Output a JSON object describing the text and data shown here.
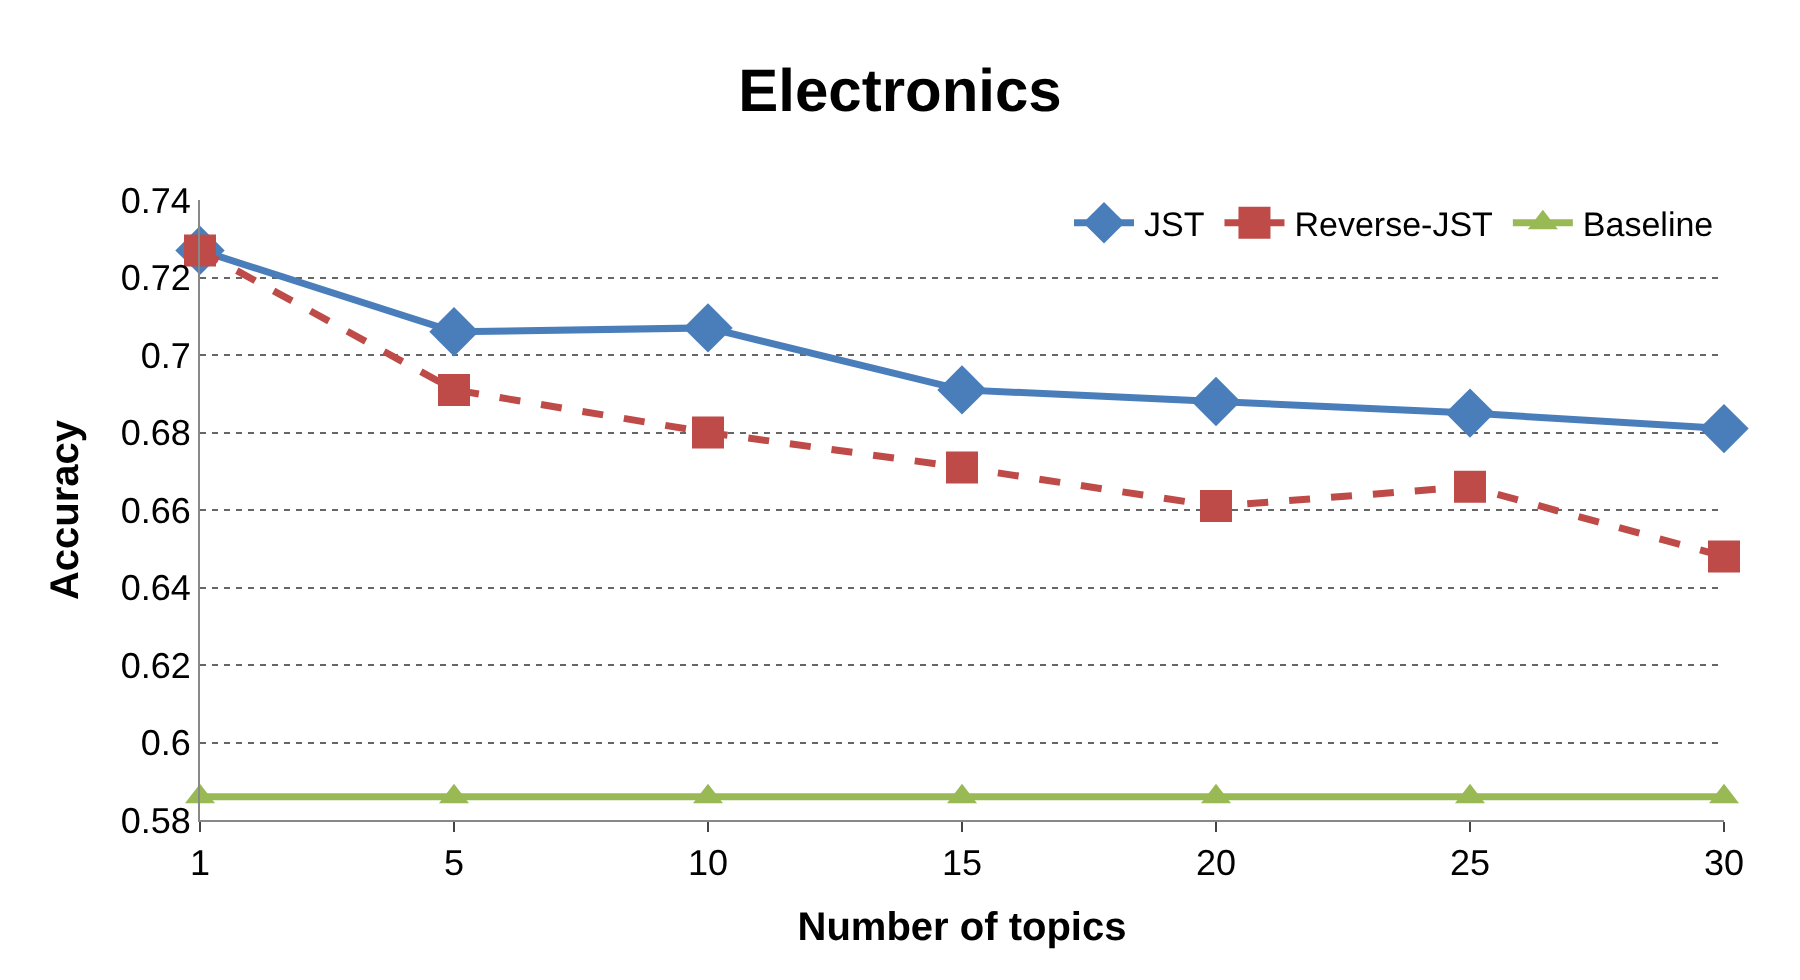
{
  "chart_data": {
    "type": "line",
    "title": "Electronics",
    "xlabel": "Number of topics",
    "ylabel": "Accuracy",
    "categories": [
      "1",
      "5",
      "10",
      "15",
      "20",
      "25",
      "30"
    ],
    "series": [
      {
        "name": "JST",
        "color": "#4a7ebb",
        "marker": "diamond",
        "line_style": "solid",
        "values": [
          0.727,
          0.706,
          0.707,
          0.691,
          0.688,
          0.685,
          0.681
        ]
      },
      {
        "name": "Reverse-JST",
        "color": "#be4b48",
        "marker": "square",
        "line_style": "dashed",
        "values": [
          0.727,
          0.691,
          0.68,
          0.671,
          0.661,
          0.666,
          0.648
        ]
      },
      {
        "name": "Baseline",
        "color": "#98b954",
        "marker": "triangle",
        "line_style": "solid",
        "values": [
          0.586,
          0.586,
          0.586,
          0.586,
          0.586,
          0.586,
          0.586
        ]
      }
    ],
    "ylim": [
      0.58,
      0.74
    ],
    "yticks": [
      0.58,
      0.6,
      0.62,
      0.64,
      0.66,
      0.68,
      0.7,
      0.72,
      0.74
    ],
    "grid": "y",
    "legend": "top right"
  }
}
